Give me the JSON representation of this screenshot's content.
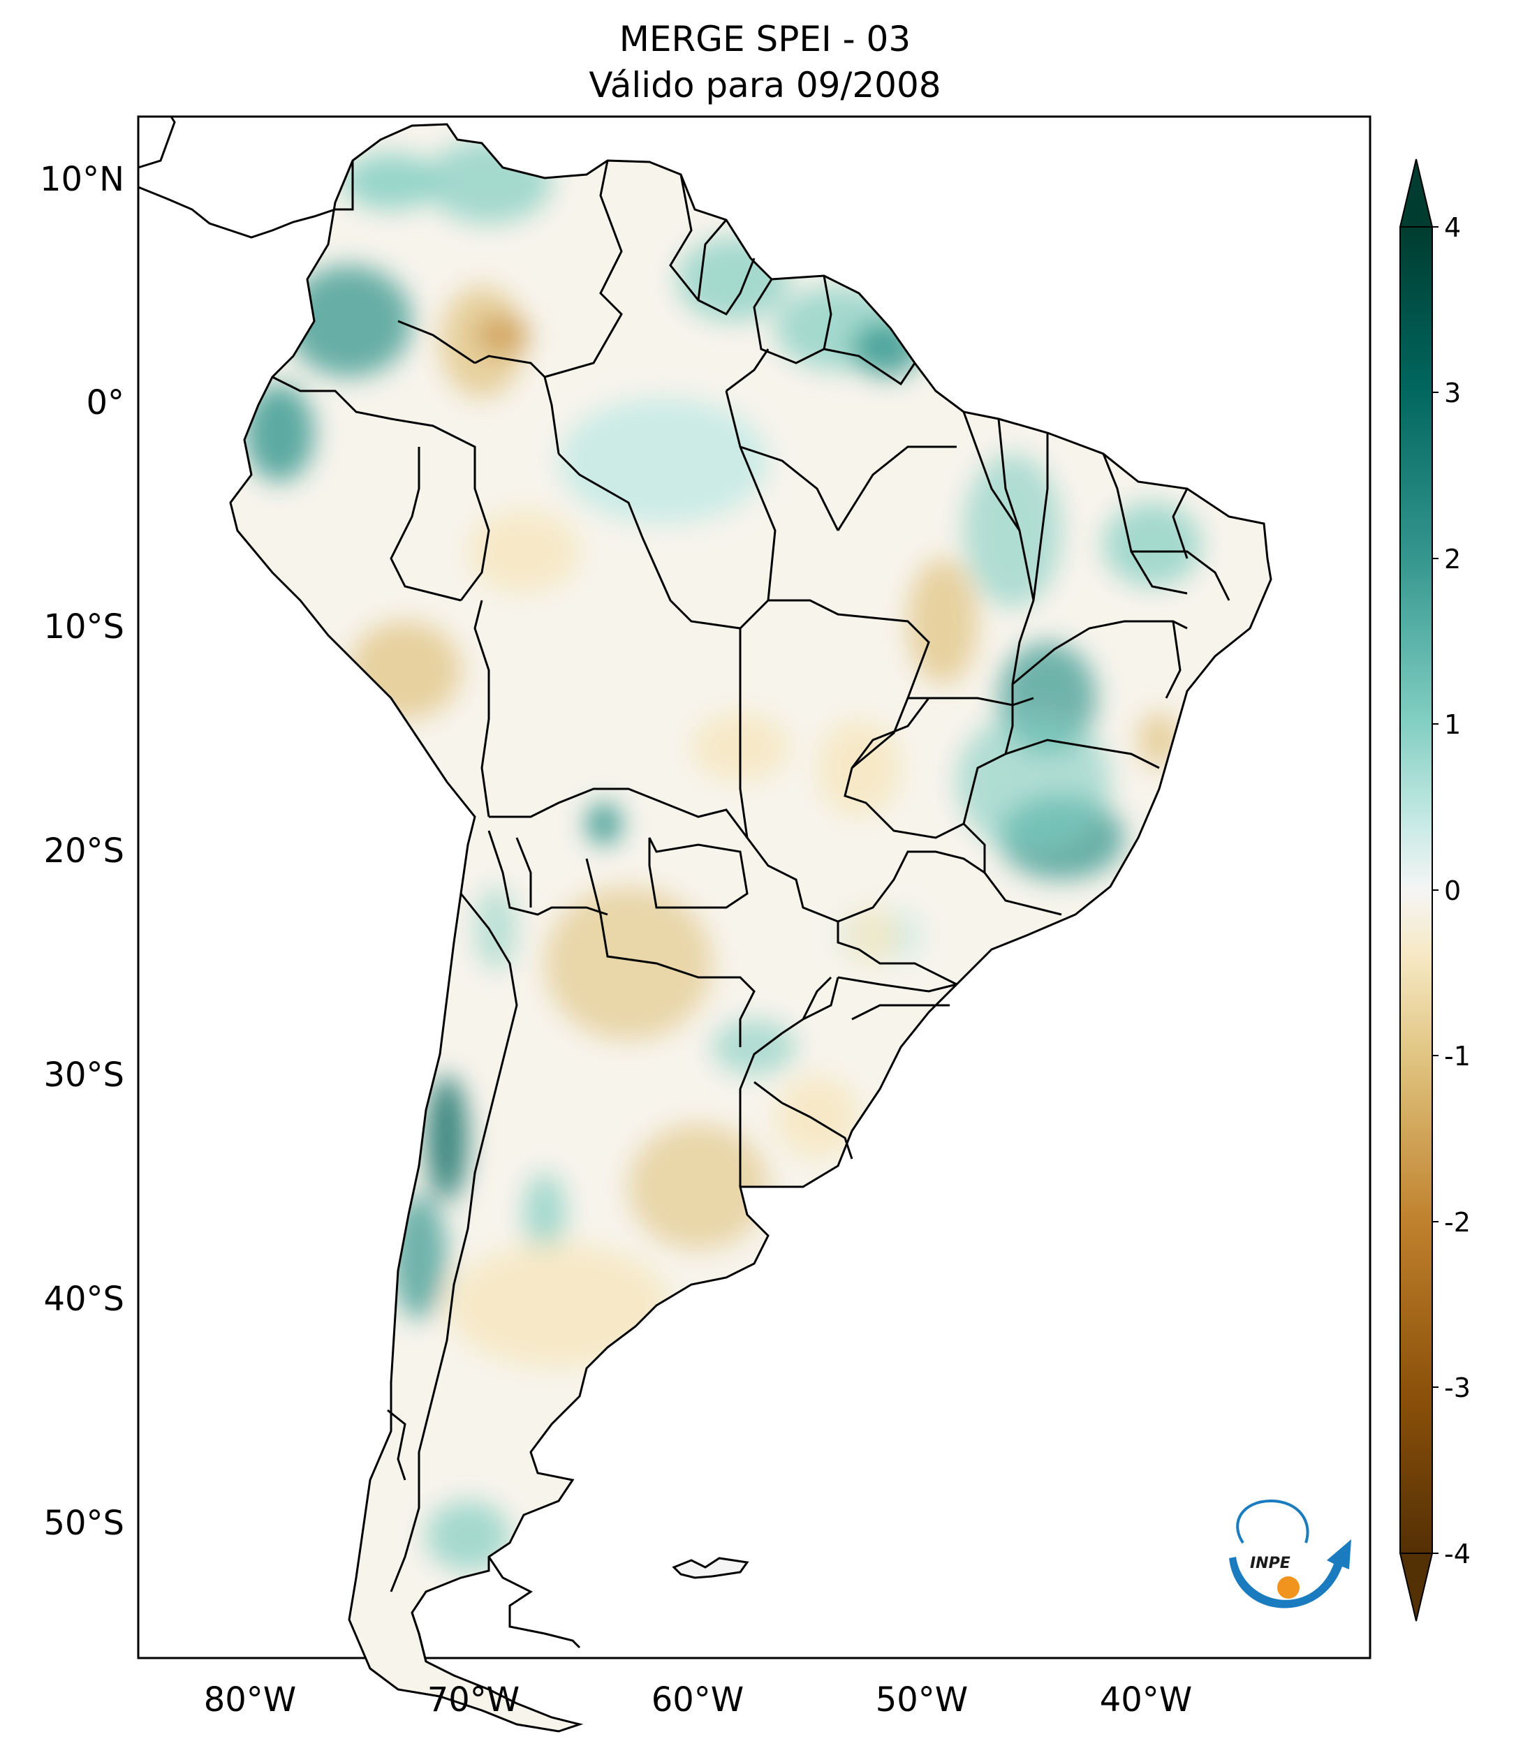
{
  "title": {
    "line1": "MERGE   SPEI - 03",
    "line2": "Válido para 09/2008"
  },
  "axes": {
    "lon_ticks": [
      "80°W",
      "70°W",
      "60°W",
      "50°W",
      "40°W"
    ],
    "lat_ticks": [
      "10°N",
      "0°",
      "10°S",
      "20°S",
      "30°S",
      "40°S",
      "50°S"
    ],
    "lon_values": [
      -80,
      -70,
      -60,
      -50,
      -40
    ],
    "lat_values": [
      10,
      0,
      -10,
      -20,
      -30,
      -40,
      -50
    ],
    "extent": {
      "lon_min": -85,
      "lon_max": -30,
      "lat_min": -56,
      "lat_max": 13
    }
  },
  "colorbar": {
    "ticks": [
      "4",
      "3",
      "2",
      "1",
      "0",
      "-1",
      "-2",
      "-3",
      "-4"
    ],
    "values": [
      4,
      3,
      2,
      1,
      0,
      -1,
      -2,
      -3,
      -4
    ],
    "colormap": "BrBG",
    "colors": {
      "max": "#003c30",
      "high": "#01665e",
      "mid_high": "#35978f",
      "low_pos": "#80cdc1",
      "pale_pos": "#c7eae5",
      "zero": "#f5f5f5",
      "pale_neg": "#f6e8c3",
      "low_neg": "#dfc27d",
      "mid_low": "#bf812d",
      "low": "#8c510a",
      "min": "#543005"
    }
  },
  "logo": {
    "text": "INPE",
    "colors": {
      "arrow": "#1a7bbf",
      "dot": "#f0941d"
    }
  }
}
